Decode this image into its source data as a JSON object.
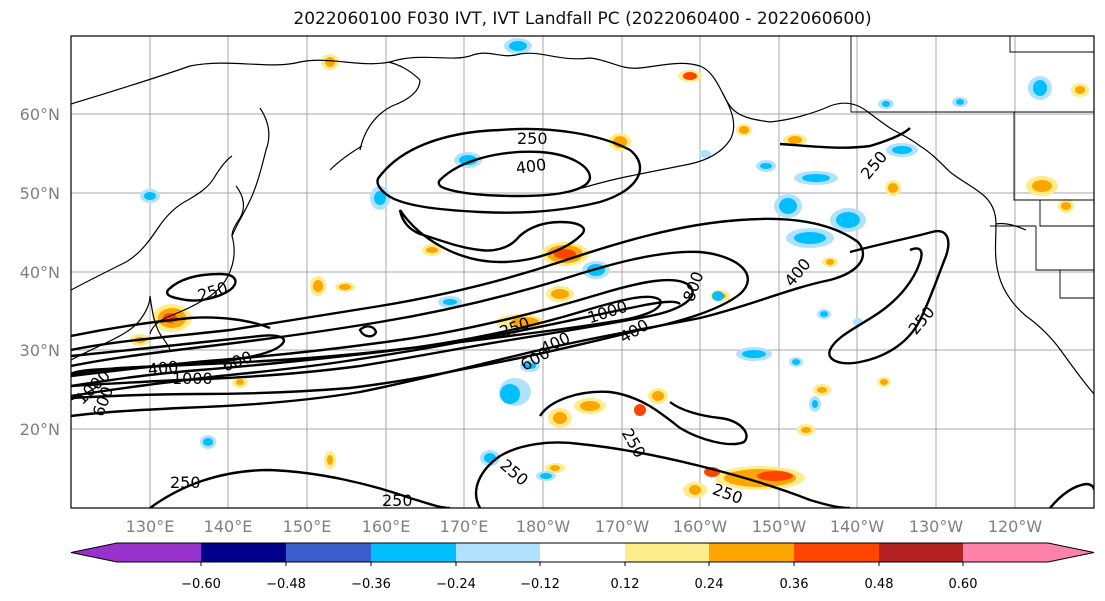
{
  "title": "2022060100 F030 IVT, IVT Landfall PC (2022060400 - 2022060600)",
  "lat_labels": [
    "60°N",
    "50°N",
    "40°N",
    "30°N",
    "20°N"
  ],
  "lon_labels": [
    "130°E",
    "140°E",
    "150°E",
    "160°E",
    "170°E",
    "180°W",
    "170°W",
    "160°W",
    "150°W",
    "140°W",
    "130°W",
    "120°W"
  ],
  "colorbar": {
    "colors": [
      "#9932CC",
      "#00008B",
      "#3A5FCD",
      "#00BFFF",
      "#B0E2FF",
      "#FFFFFF",
      "#FFEC8B",
      "#FFA500",
      "#FF4500",
      "#B22222",
      "#FF82AB"
    ],
    "ticks": [
      "−0.60",
      "−0.48",
      "−0.36",
      "−0.24",
      "−0.12",
      "0.12",
      "0.24",
      "0.36",
      "0.48",
      "0.60"
    ]
  },
  "contour_labels": [
    "250",
    "400",
    "250",
    "400",
    "800",
    "250",
    "250",
    "400",
    "1000",
    "250",
    "400",
    "600",
    "1000",
    "600",
    "250",
    "250",
    "250",
    "250",
    "250",
    "400",
    "1000",
    "600"
  ]
}
